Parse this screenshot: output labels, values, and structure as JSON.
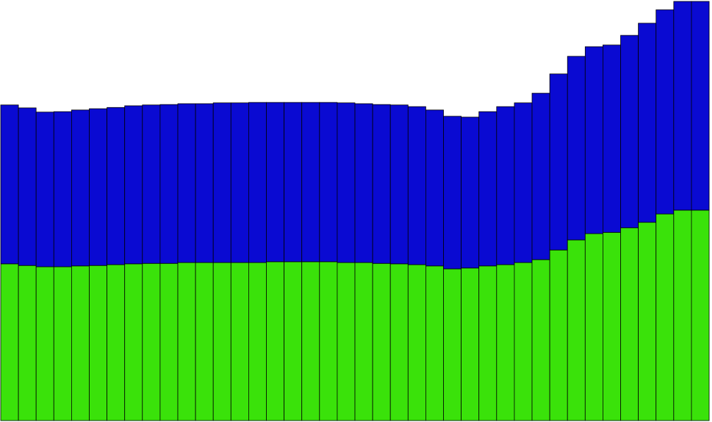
{
  "chart_data": {
    "type": "stacked_bar",
    "categories": [
      null,
      null,
      null,
      null,
      null,
      null,
      null,
      null,
      null,
      null,
      null,
      null,
      null,
      null,
      null,
      null,
      null,
      null,
      null,
      null,
      null,
      null,
      null,
      null,
      null,
      null,
      null,
      null,
      null,
      null,
      null,
      null,
      null,
      null,
      null,
      null,
      null,
      null,
      null,
      null
    ],
    "series": [
      {
        "color": "#3ae20a",
        "values": [
          37.4,
          37.0,
          36.7,
          36.7,
          36.9,
          37.0,
          37.2,
          37.4,
          37.5,
          37.5,
          37.7,
          37.7,
          37.7,
          37.7,
          37.7,
          37.9,
          37.9,
          37.9,
          37.9,
          37.7,
          37.7,
          37.5,
          37.4,
          37.2,
          36.9,
          36.2,
          36.4,
          36.9,
          37.2,
          37.7,
          38.4,
          40.7,
          43.1,
          44.6,
          44.9,
          46.0,
          47.3,
          49.3,
          50.2,
          50.2
        ]
      },
      {
        "color": "#0a0ad2",
        "values": [
          37.9,
          37.6,
          36.9,
          37.0,
          37.2,
          37.4,
          37.5,
          37.7,
          37.8,
          37.9,
          37.9,
          37.9,
          38.1,
          38.1,
          38.2,
          38.0,
          38.0,
          38.0,
          38.0,
          38.1,
          37.9,
          37.9,
          37.9,
          37.7,
          37.2,
          36.4,
          36.0,
          36.8,
          37.7,
          38.1,
          39.7,
          42.0,
          43.8,
          44.6,
          44.7,
          45.9,
          47.5,
          48.7,
          49.8,
          49.8
        ]
      }
    ],
    "ylim": [
      0,
      100
    ]
  }
}
